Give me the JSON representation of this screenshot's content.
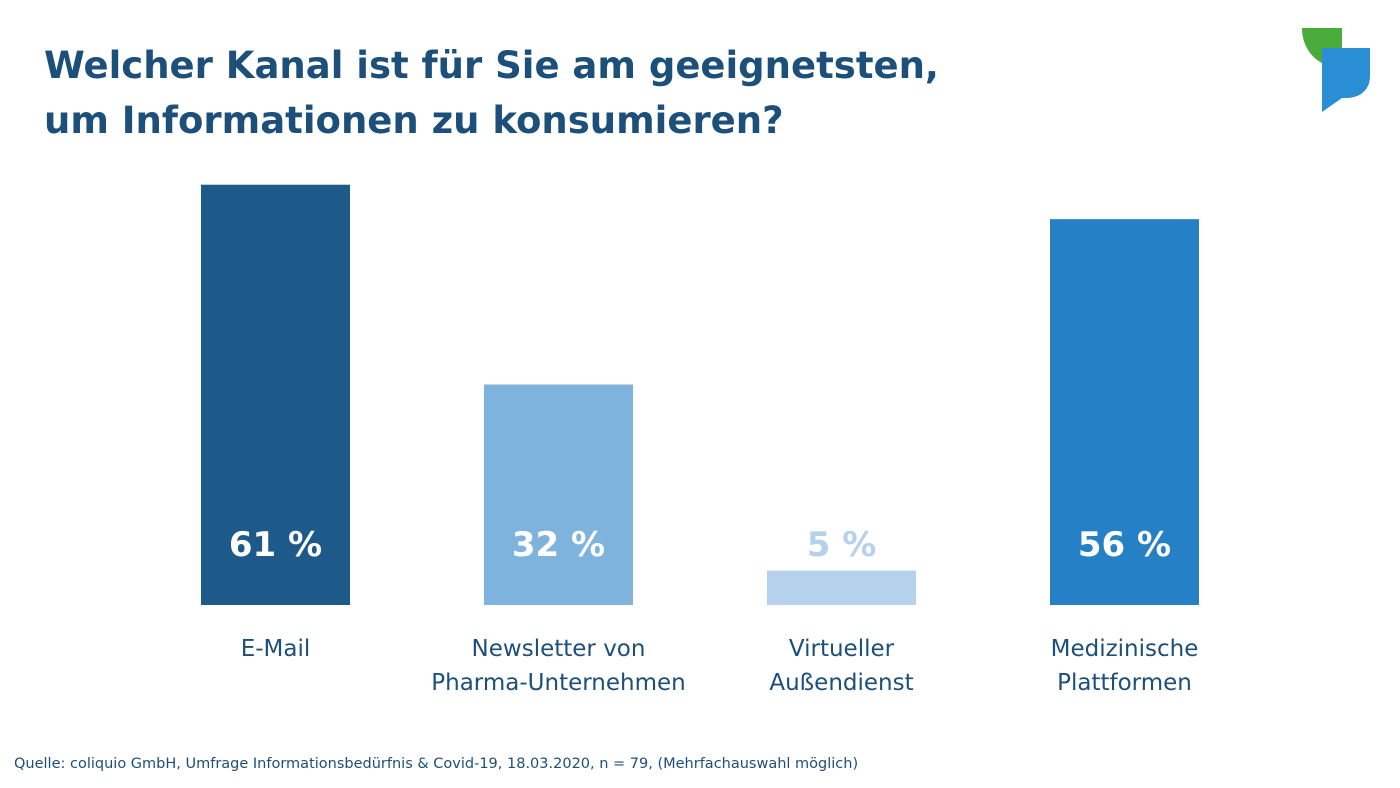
{
  "title_lines": [
    "Welcher Kanal ist für Sie am geeignetsten,",
    "um Informationen zu konsumieren?"
  ],
  "source": "Quelle: coliquio GmbH, Umfrage Informationsbedürfnis & Covid-19, 18.03.2020, n = 79, (Mehrfachauswahl möglich)",
  "colors": {
    "title": "#1c4f7a",
    "logo_green": "#4aaa3a",
    "logo_blue": "#2a8ed4"
  },
  "chart_data": {
    "type": "bar",
    "title": "Welcher Kanal ist für Sie am geeignetsten, um Informationen zu konsumieren?",
    "xlabel": "",
    "ylabel": "",
    "ylim": [
      0,
      100
    ],
    "grid": false,
    "categories": [
      [
        "E-Mail"
      ],
      [
        "Newsletter von",
        "Pharma-Unternehmen"
      ],
      [
        "Virtueller",
        "Außendienst"
      ],
      [
        "Medizinische",
        "Plattformen"
      ]
    ],
    "values": [
      61,
      32,
      5,
      56
    ],
    "value_labels": [
      "61 %",
      "32 %",
      "5 %",
      "56 %"
    ],
    "bar_colors": [
      "#1d5a8a",
      "#7db3dd",
      "#b5d1ec",
      "#2680c5"
    ],
    "label_colors": [
      "#ffffff",
      "#ffffff",
      "#b5d1ec",
      "#ffffff"
    ]
  }
}
